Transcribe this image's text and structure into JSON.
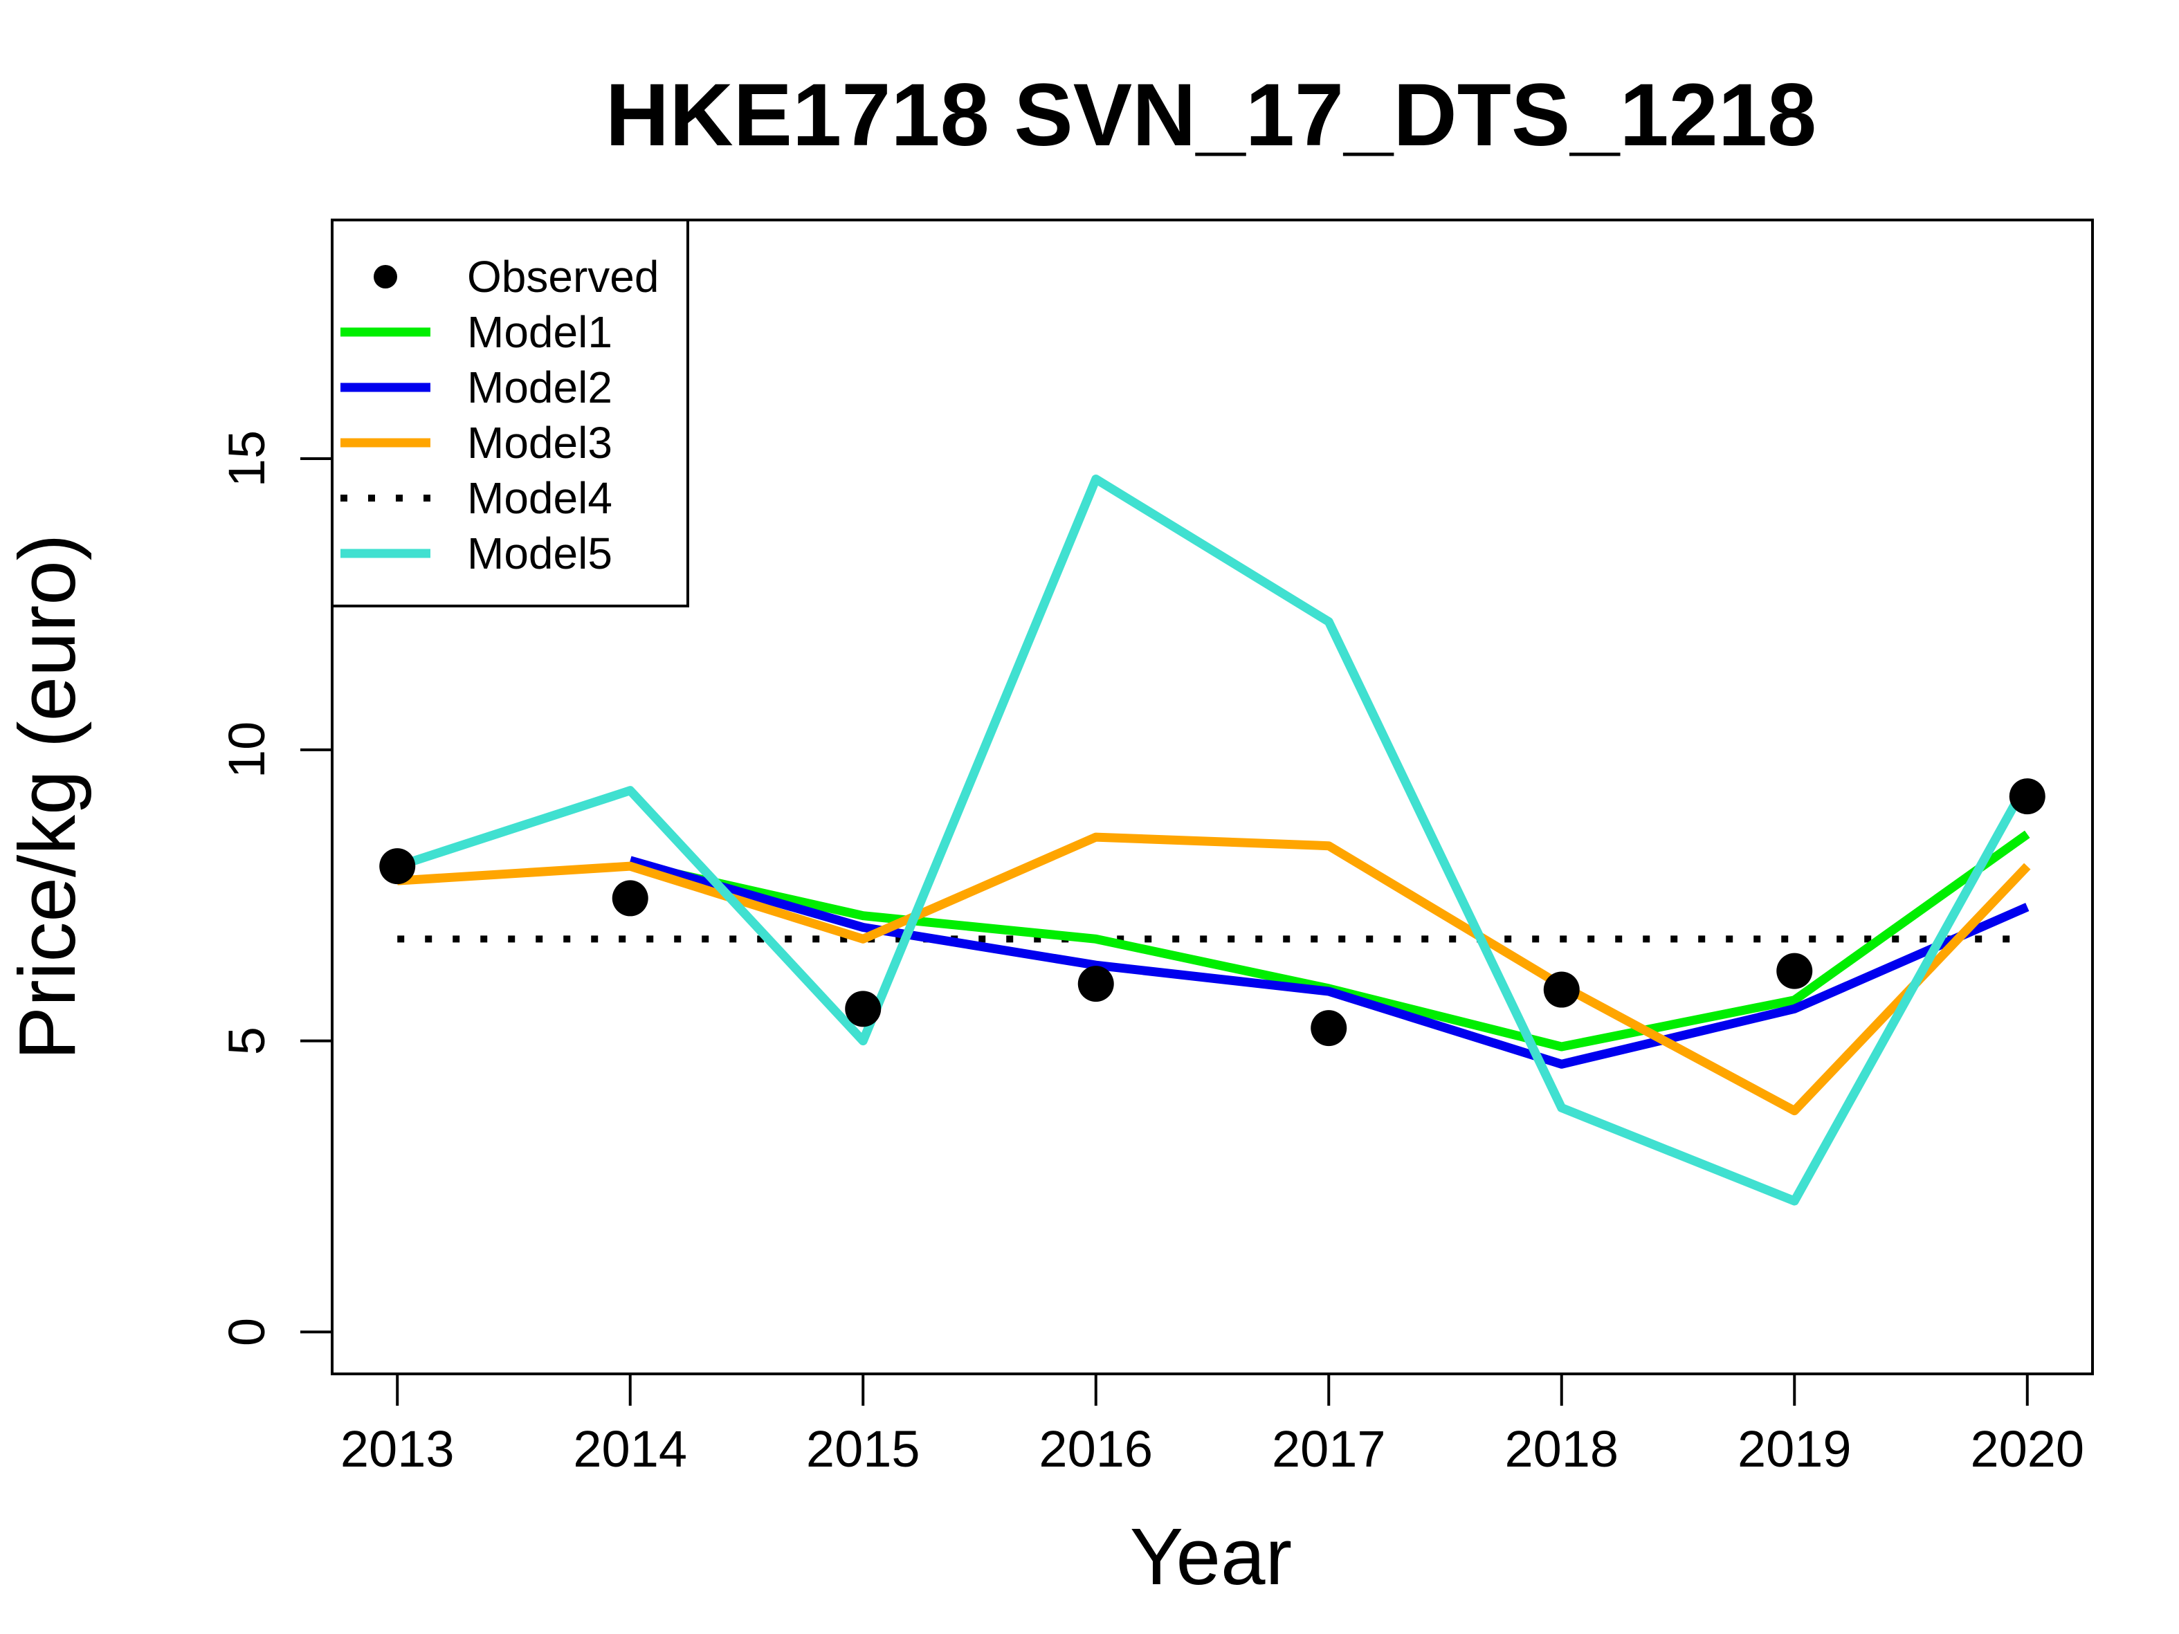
{
  "chart_data": {
    "type": "line",
    "title": "HKE1718 SVN_17_DTS_1218",
    "xlabel": "Year",
    "ylabel": "Price/kg (euro)",
    "x": [
      2013,
      2014,
      2015,
      2016,
      2017,
      2018,
      2019,
      2020
    ],
    "xlim": [
      2012.72,
      2020.28
    ],
    "ylim": [
      -0.72,
      19.1
    ],
    "yticks": [
      0,
      5,
      10,
      15
    ],
    "grid": false,
    "legend_position": "top-left",
    "series": [
      {
        "name": "Observed",
        "kind": "points",
        "color": "#000000",
        "values": [
          8.0,
          7.45,
          5.55,
          5.98,
          5.22,
          5.88,
          6.2,
          9.2
        ]
      },
      {
        "name": "Model1",
        "kind": "line",
        "color": "#00ee00",
        "dash": "solid",
        "values": [
          null,
          8.05,
          7.15,
          6.75,
          5.9,
          4.9,
          5.7,
          8.55
        ]
      },
      {
        "name": "Model2",
        "kind": "line",
        "color": "#0000ee",
        "dash": "solid",
        "values": [
          null,
          8.1,
          6.95,
          6.3,
          5.85,
          4.6,
          5.55,
          7.3
        ]
      },
      {
        "name": "Model3",
        "kind": "line",
        "color": "#ffa500",
        "dash": "solid",
        "values": [
          7.75,
          8.0,
          6.75,
          8.5,
          8.35,
          5.95,
          3.8,
          8.0
        ]
      },
      {
        "name": "Model4",
        "kind": "line",
        "color": "#000000",
        "dash": "dotted",
        "values": [
          6.75,
          6.75,
          6.75,
          6.75,
          6.75,
          6.75,
          6.75,
          6.75
        ]
      },
      {
        "name": "Model5",
        "kind": "line",
        "color": "#40e0d0",
        "dash": "solid",
        "values": [
          8.0,
          9.3,
          5.0,
          14.65,
          12.2,
          3.85,
          2.25,
          9.45
        ]
      }
    ]
  }
}
